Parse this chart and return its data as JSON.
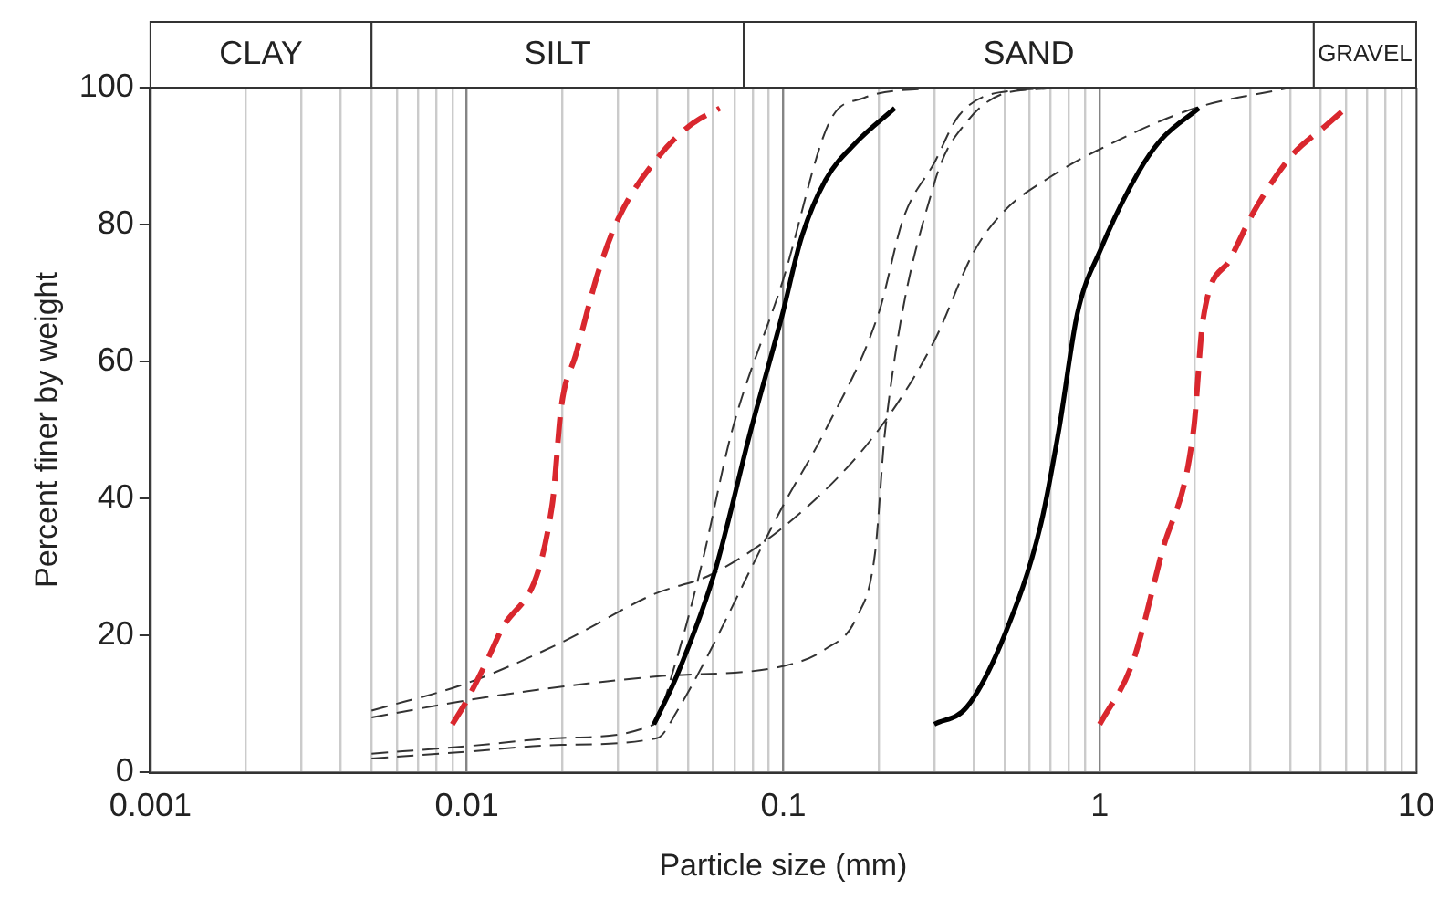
{
  "chart_data": {
    "type": "line",
    "xlabel": "Particle size (mm)",
    "ylabel": "Percent finer by weight",
    "log": "x",
    "grid": "x",
    "legend": false,
    "marker": "none",
    "xlim": [
      0.001,
      10
    ],
    "ylim": [
      0,
      100
    ],
    "yticks": [
      0,
      20,
      40,
      60,
      80,
      100
    ],
    "xticks": [
      "0.001",
      {
        "value": 0.002,
        "label": null
      },
      {
        "value": 0.003,
        "label": null
      },
      {
        "value": 0.004,
        "label": null
      },
      {
        "value": 0.005,
        "label": null
      },
      {
        "value": 0.006,
        "label": null
      },
      {
        "value": 0.007,
        "label": null
      },
      {
        "value": 0.008,
        "label": null
      },
      {
        "value": 0.009,
        "label": null
      },
      {
        "value": 0.01,
        "label": "0.01"
      },
      {
        "value": 0.02,
        "label": null
      },
      {
        "value": 0.03,
        "label": null
      },
      {
        "value": 0.04,
        "label": null
      },
      {
        "value": 0.05,
        "label": null
      },
      {
        "value": 0.06,
        "label": null
      },
      {
        "value": 0.07,
        "label": null
      },
      {
        "value": 0.08,
        "label": null
      },
      {
        "value": 0.09,
        "label": null
      },
      {
        "value": 0.1,
        "label": "0.1"
      },
      {
        "value": 0.2,
        "label": null
      },
      {
        "value": 0.3,
        "label": null
      },
      {
        "value": 0.4,
        "label": null
      },
      {
        "value": 0.5,
        "label": null
      },
      {
        "value": 0.6,
        "label": null
      },
      {
        "value": 0.7,
        "label": null
      },
      {
        "value": 0.8,
        "label": null
      },
      {
        "value": 0.9,
        "label": null
      },
      1,
      {
        "value": 2,
        "label": null
      },
      {
        "value": 3,
        "label": null
      },
      {
        "value": 4,
        "label": null
      },
      {
        "value": 5,
        "label": null
      },
      {
        "value": 6,
        "label": null
      },
      {
        "value": 7,
        "label": null
      },
      {
        "value": 8,
        "label": null
      },
      {
        "value": 9,
        "label": null
      },
      10
    ],
    "bands": [
      {
        "axis": "x",
        "from": 0.001,
        "to": 0.005,
        "label": "CLAY",
        "color": "#ffffff"
      },
      {
        "axis": "x",
        "from": 0.005,
        "to": 0.075,
        "label": "SILT",
        "color": "#ffffff"
      },
      {
        "axis": "x",
        "from": 0.075,
        "to": 4.75,
        "label": "SAND",
        "color": "#ffffff"
      },
      {
        "axis": "x",
        "from": 4.75,
        "to": 10,
        "label": "GRAVEL",
        "color": "#ffffff"
      }
    ],
    "series": [
      {
        "color": "#d9272e",
        "line_style": "dashed",
        "x": [
          0.009,
          0.01,
          0.0126,
          0.0186,
          0.0199,
          0.0221,
          0.026,
          0.0302,
          0.0405,
          0.0508,
          0.063
        ],
        "values": [
          7,
          10.5,
          20,
          39,
          53.5,
          61,
          73,
          81,
          90,
          94.5,
          97
        ]
      },
      {
        "color": "#d9272e",
        "line_style": "dashed",
        "x": [
          1,
          1.27,
          1.57,
          1.98,
          2.12,
          2.59,
          3.08,
          4.03,
          5.2,
          6
        ],
        "values": [
          7,
          16,
          32,
          50,
          66,
          75,
          82,
          90,
          94.5,
          97
        ]
      },
      {
        "color": "#000000",
        "line_style": "solid",
        "x": [
          0.039,
          0.046,
          0.0605,
          0.079,
          0.0995,
          0.114,
          0.136,
          0.17,
          0.225
        ],
        "values": [
          7,
          14,
          29,
          50,
          67,
          78,
          86.5,
          92,
          97
        ]
      },
      {
        "color": "#000000",
        "line_style": "solid",
        "x": [
          0.3,
          0.38,
          0.5,
          0.65,
          0.743,
          0.85,
          1.01,
          1.32,
          1.57,
          2.06
        ],
        "values": [
          7,
          9.5,
          20,
          36,
          50,
          67,
          76.5,
          87.5,
          92.5,
          97
        ]
      },
      {
        "color": "#333333",
        "line_style": "dashed",
        "x": [
          0.005,
          0.01,
          0.02,
          0.039,
          0.06,
          0.114,
          0.2,
          0.3,
          0.4,
          0.5,
          0.7,
          1,
          2,
          4
        ],
        "values": [
          9,
          13,
          19,
          26,
          29,
          38,
          50,
          63,
          76,
          82,
          87,
          91,
          97,
          100
        ]
      },
      {
        "color": "#333333",
        "line_style": "dashed",
        "x": [
          0.005,
          0.01,
          0.02,
          0.04,
          0.1,
          0.136,
          0.17,
          0.195,
          0.21,
          0.3,
          0.38,
          0.54,
          1
        ],
        "values": [
          8,
          10.5,
          12.5,
          14,
          15.5,
          18,
          22.5,
          32,
          50,
          86,
          95,
          99.5,
          100
        ]
      },
      {
        "color": "#333333",
        "line_style": "dashed",
        "x": [
          0.005,
          0.01,
          0.02,
          0.039,
          0.045,
          0.055,
          0.069,
          0.1,
          0.14,
          0.18,
          0.3
        ],
        "values": [
          2.7,
          3.8,
          5,
          7,
          15,
          30,
          50,
          72,
          95,
          98.5,
          100
        ]
      },
      {
        "color": "#333333",
        "line_style": "dashed",
        "x": [
          0.005,
          0.01,
          0.02,
          0.04,
          0.046,
          0.1,
          0.136,
          0.2,
          0.24,
          0.3,
          0.36,
          0.52,
          1
        ],
        "values": [
          2,
          3,
          4,
          5,
          8.8,
          39,
          50,
          67,
          81,
          89,
          96,
          99.5,
          100
        ]
      }
    ]
  }
}
